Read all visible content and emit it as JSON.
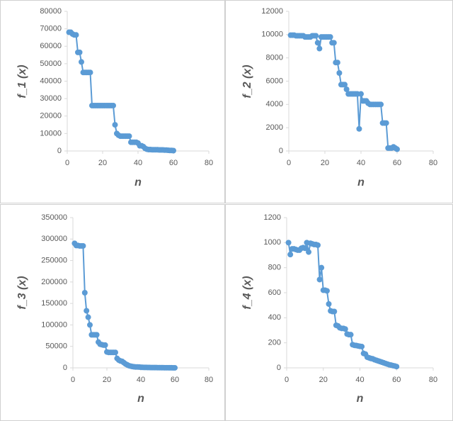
{
  "chart_data": [
    {
      "type": "line",
      "x_label": "n",
      "y_label": "f_1 (x)",
      "color": "#5b9bd5",
      "x": [
        1,
        2,
        3,
        4,
        5,
        6,
        7,
        8,
        9,
        10,
        11,
        12,
        13,
        14,
        15,
        16,
        17,
        18,
        19,
        20,
        21,
        22,
        23,
        24,
        25,
        26,
        27,
        28,
        29,
        30,
        31,
        32,
        33,
        34,
        35,
        36,
        37,
        38,
        39,
        40,
        41,
        42,
        43,
        44,
        45,
        46,
        47,
        48,
        49,
        50,
        51,
        52,
        53,
        54,
        55,
        56,
        57,
        58,
        59,
        60
      ],
      "values": [
        68000,
        68000,
        67000,
        66500,
        66500,
        56500,
        56500,
        51000,
        45000,
        45000,
        45000,
        45000,
        45000,
        26000,
        26000,
        26000,
        26000,
        26000,
        26000,
        26000,
        26000,
        26000,
        26000,
        26000,
        26000,
        26000,
        15000,
        10000,
        9000,
        8500,
        8500,
        8500,
        8500,
        8500,
        8500,
        5000,
        5000,
        5000,
        5000,
        4500,
        3000,
        3000,
        2500,
        1500,
        1000,
        800,
        800,
        700,
        700,
        700,
        700,
        600,
        600,
        600,
        500,
        500,
        400,
        300,
        300,
        200
      ],
      "xlim": [
        0,
        80
      ],
      "xticks": [
        0,
        20,
        40,
        60,
        80
      ],
      "ylim": [
        0,
        80000
      ],
      "yticks": [
        0,
        10000,
        20000,
        30000,
        40000,
        50000,
        60000,
        70000,
        80000
      ]
    },
    {
      "type": "line",
      "x_label": "n",
      "y_label": "f_2 (x)",
      "color": "#5b9bd5",
      "x": [
        1,
        2,
        3,
        4,
        5,
        6,
        7,
        8,
        9,
        10,
        11,
        12,
        13,
        14,
        15,
        16,
        17,
        18,
        19,
        20,
        21,
        22,
        23,
        24,
        25,
        26,
        27,
        28,
        29,
        30,
        31,
        32,
        33,
        34,
        35,
        36,
        37,
        38,
        39,
        40,
        41,
        42,
        43,
        44,
        45,
        46,
        47,
        48,
        49,
        50,
        51,
        52,
        53,
        54,
        55,
        56,
        57,
        58,
        59,
        60
      ],
      "values": [
        9950,
        9950,
        9950,
        9900,
        9900,
        9900,
        9900,
        9900,
        9800,
        9800,
        9800,
        9800,
        9900,
        9900,
        9900,
        9300,
        8800,
        9800,
        9800,
        9800,
        9800,
        9800,
        9800,
        9300,
        9300,
        7600,
        7600,
        6700,
        5700,
        5700,
        5700,
        5300,
        4900,
        4900,
        4900,
        4900,
        4900,
        4900,
        1900,
        4900,
        4300,
        4300,
        4300,
        4100,
        4000,
        4000,
        4000,
        4000,
        4000,
        4000,
        4000,
        2400,
        2400,
        2400,
        250,
        250,
        250,
        350,
        250,
        150
      ],
      "xlim": [
        0,
        80
      ],
      "xticks": [
        0,
        20,
        40,
        60,
        80
      ],
      "ylim": [
        0,
        12000
      ],
      "yticks": [
        0,
        2000,
        4000,
        6000,
        8000,
        10000,
        12000
      ]
    },
    {
      "type": "line",
      "x_label": "n",
      "y_label": "f_3 (x)",
      "color": "#5b9bd5",
      "x": [
        1,
        2,
        3,
        4,
        5,
        6,
        7,
        8,
        9,
        10,
        11,
        12,
        13,
        14,
        15,
        16,
        17,
        18,
        19,
        20,
        21,
        22,
        23,
        24,
        25,
        26,
        27,
        28,
        29,
        30,
        31,
        32,
        33,
        34,
        35,
        36,
        37,
        38,
        39,
        40,
        41,
        42,
        43,
        44,
        45,
        46,
        47,
        48,
        49,
        50,
        51,
        52,
        53,
        54,
        55,
        56,
        57,
        58,
        59,
        60
      ],
      "values": [
        290000,
        285000,
        285000,
        284000,
        284000,
        284000,
        175000,
        133000,
        118000,
        100000,
        77000,
        77000,
        77000,
        77000,
        60000,
        55000,
        54000,
        53000,
        53000,
        37000,
        36000,
        36000,
        36000,
        36000,
        36000,
        22000,
        18000,
        16000,
        15000,
        12000,
        9000,
        7000,
        5000,
        4000,
        3000,
        2500,
        2000,
        2000,
        1800,
        1500,
        1200,
        1000,
        1000,
        900,
        800,
        700,
        700,
        600,
        600,
        500,
        500,
        400,
        400,
        300,
        300,
        300,
        200,
        200,
        100,
        100
      ],
      "xlim": [
        0,
        80
      ],
      "xticks": [
        0,
        20,
        40,
        60,
        80
      ],
      "ylim": [
        0,
        350000
      ],
      "yticks": [
        0,
        50000,
        100000,
        150000,
        200000,
        250000,
        300000,
        350000
      ]
    },
    {
      "type": "line",
      "x_label": "n",
      "y_label": "f_4 (x)",
      "color": "#5b9bd5",
      "x": [
        1,
        2,
        3,
        4,
        5,
        6,
        7,
        8,
        9,
        10,
        11,
        12,
        13,
        14,
        15,
        16,
        17,
        18,
        19,
        20,
        21,
        22,
        23,
        24,
        25,
        26,
        27,
        28,
        29,
        30,
        31,
        32,
        33,
        34,
        35,
        36,
        37,
        38,
        39,
        40,
        41,
        42,
        43,
        44,
        45,
        46,
        47,
        48,
        49,
        50,
        51,
        52,
        53,
        54,
        55,
        56,
        57,
        58,
        59,
        60
      ],
      "values": [
        1000,
        905,
        950,
        950,
        945,
        940,
        940,
        955,
        960,
        955,
        1000,
        925,
        995,
        990,
        985,
        985,
        980,
        705,
        800,
        620,
        620,
        615,
        510,
        455,
        450,
        450,
        340,
        335,
        320,
        315,
        315,
        310,
        270,
        265,
        265,
        185,
        180,
        178,
        175,
        172,
        170,
        115,
        110,
        85,
        80,
        75,
        72,
        65,
        60,
        55,
        50,
        45,
        40,
        35,
        30,
        25,
        22,
        18,
        15,
        10
      ],
      "xlim": [
        0,
        80
      ],
      "xticks": [
        0,
        20,
        40,
        60,
        80
      ],
      "ylim": [
        0,
        1200
      ],
      "yticks": [
        0,
        200,
        400,
        600,
        800,
        1000,
        1200
      ]
    }
  ]
}
